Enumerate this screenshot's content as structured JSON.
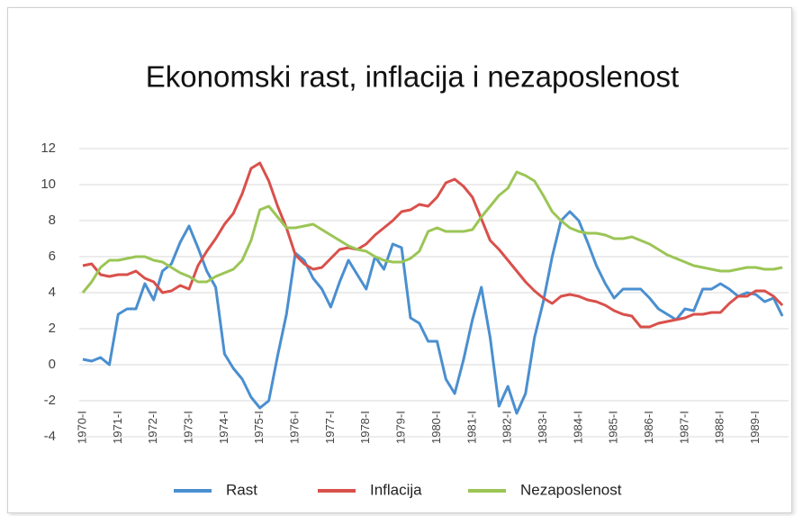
{
  "chart_data": {
    "type": "line",
    "title": "Ekonomski rast, inflacija i nezaposlenost",
    "categories": [
      "1970-I",
      null,
      null,
      null,
      "1971-I",
      null,
      null,
      null,
      "1972-I",
      null,
      null,
      null,
      "1973-I",
      null,
      null,
      null,
      "1974-I",
      null,
      null,
      null,
      "1975-I",
      null,
      null,
      null,
      "1976-I",
      null,
      null,
      null,
      "1977-I",
      null,
      null,
      null,
      "1978-I",
      null,
      null,
      null,
      "1979-I",
      null,
      null,
      null,
      "1980-I",
      null,
      null,
      null,
      "1981-I",
      null,
      null,
      null,
      "1982-I",
      null,
      null,
      null,
      "1983-I",
      null,
      null,
      null,
      "1984-I",
      null,
      null,
      null,
      "1985-I",
      null,
      null,
      null,
      "1986-I",
      null,
      null,
      null,
      "1987-I",
      null,
      null,
      null,
      "1988-I",
      null,
      null,
      null,
      "1989-I",
      null,
      null,
      null
    ],
    "series": [
      {
        "name": "Rast",
        "color": "#4a8fd0",
        "values": [
          0.3,
          0.2,
          0.4,
          0,
          2.8,
          3.1,
          3.1,
          4.5,
          3.6,
          5.2,
          5.6,
          6.8,
          7.7,
          6.5,
          5.2,
          4.3,
          0.6,
          -0.2,
          -0.8,
          -1.8,
          -2.4,
          -2,
          0.5,
          2.8,
          6.2,
          5.8,
          4.8,
          4.2,
          3.2,
          4.6,
          5.8,
          5,
          4.2,
          6,
          5.3,
          6.7,
          6.5,
          2.6,
          2.3,
          1.3,
          1.3,
          -0.8,
          -1.6,
          0.3,
          2.5,
          4.3,
          1.5,
          -2.3,
          -1.2,
          -2.7,
          -1.6,
          1.5,
          3.5,
          6,
          8,
          8.5,
          8,
          6.8,
          5.5,
          4.5,
          3.7,
          4.2,
          4.2,
          4.2,
          3.7,
          3.1,
          2.8,
          2.5,
          3.1,
          3,
          4.2,
          4.2,
          4.5,
          4.2,
          3.8,
          4,
          3.9,
          3.5,
          3.7,
          2.7
        ]
      },
      {
        "name": "Inflacija",
        "color": "#d9504b",
        "values": [
          5.5,
          5.6,
          5,
          4.9,
          5,
          5,
          5.2,
          4.8,
          4.6,
          4,
          4.1,
          4.4,
          4.2,
          5.5,
          6.3,
          7,
          7.8,
          8.4,
          9.5,
          10.9,
          11.2,
          10.2,
          8.8,
          7.6,
          6.1,
          5.6,
          5.3,
          5.4,
          5.9,
          6.4,
          6.5,
          6.4,
          6.7,
          7.2,
          7.6,
          8,
          8.5,
          8.6,
          8.9,
          8.8,
          9.3,
          10.1,
          10.3,
          9.9,
          9.3,
          8.1,
          6.9,
          6.4,
          5.8,
          5.2,
          4.6,
          4.1,
          3.7,
          3.4,
          3.8,
          3.9,
          3.8,
          3.6,
          3.5,
          3.3,
          3,
          2.8,
          2.7,
          2.1,
          2.1,
          2.3,
          2.4,
          2.5,
          2.6,
          2.8,
          2.8,
          2.9,
          2.9,
          3.4,
          3.8,
          3.8,
          4.1,
          4.1,
          3.8,
          3.3
        ]
      },
      {
        "name": "Nezaposlenost",
        "color": "#9bc555",
        "values": [
          4,
          4.6,
          5.4,
          5.8,
          5.8,
          5.9,
          6,
          6,
          5.8,
          5.7,
          5.4,
          5.1,
          4.9,
          4.6,
          4.6,
          4.9,
          5.1,
          5.3,
          5.8,
          6.9,
          8.6,
          8.8,
          8.2,
          7.6,
          7.6,
          7.7,
          7.8,
          7.5,
          7.2,
          6.9,
          6.6,
          6.4,
          6.3,
          6,
          5.8,
          5.7,
          5.7,
          5.9,
          6.3,
          7.4,
          7.6,
          7.4,
          7.4,
          7.4,
          7.5,
          8.2,
          8.8,
          9.4,
          9.8,
          10.7,
          10.5,
          10.2,
          9.4,
          8.5,
          8,
          7.6,
          7.4,
          7.3,
          7.3,
          7.2,
          7,
          7,
          7.1,
          6.9,
          6.7,
          6.4,
          6.1,
          5.9,
          5.7,
          5.5,
          5.4,
          5.3,
          5.2,
          5.2,
          5.3,
          5.4,
          5.4,
          5.3,
          5.3,
          5.4
        ]
      }
    ],
    "ylim": [
      -4,
      12
    ],
    "yticks": [
      -4,
      -2,
      0,
      2,
      4,
      6,
      8,
      10,
      12
    ],
    "grid": true,
    "legend": "bottom"
  }
}
